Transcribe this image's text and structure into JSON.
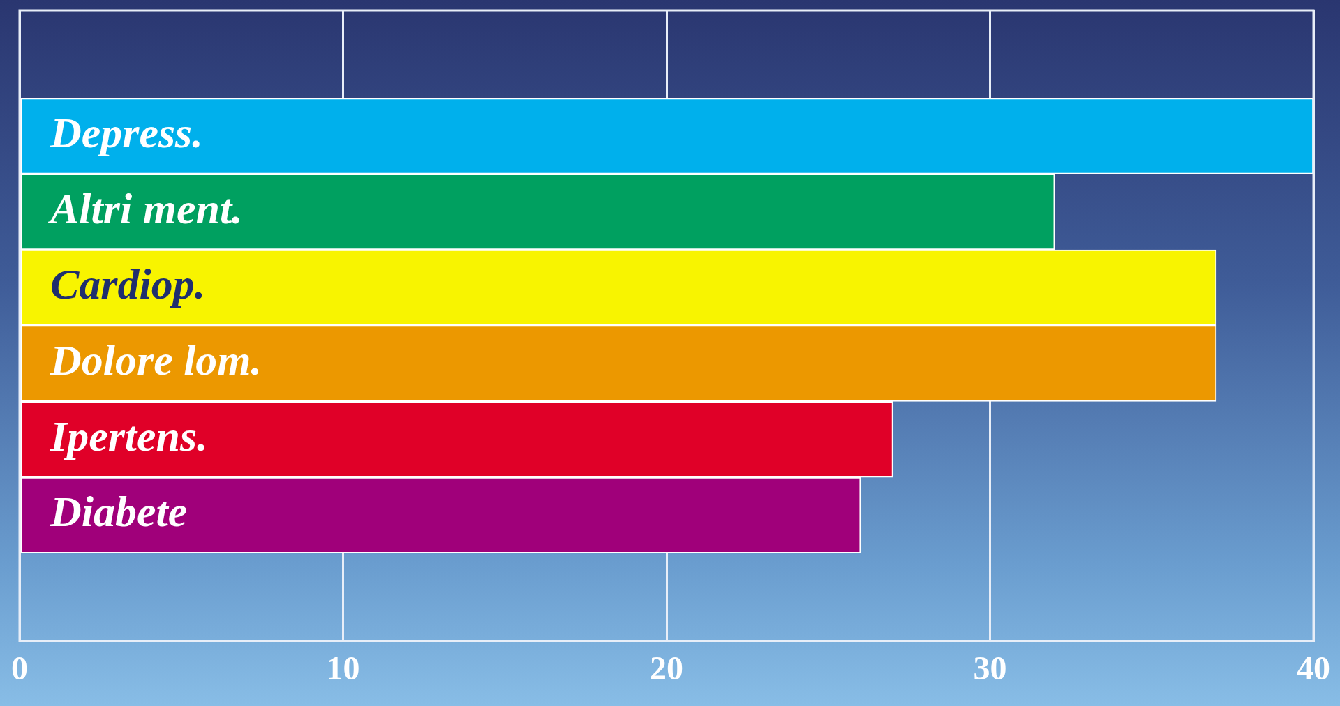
{
  "chart_data": {
    "type": "bar",
    "orientation": "horizontal",
    "categories": [
      "Depress.",
      "Altri ment.",
      "Cardiop.",
      "Dolore lom.",
      "Ipertens.",
      "Diabete"
    ],
    "values": [
      40,
      32,
      37,
      37,
      27,
      26
    ],
    "colors": [
      "#00b0ec",
      "#00a060",
      "#f8f400",
      "#ec9800",
      "#e00028",
      "#a0007a"
    ],
    "xlim": [
      0,
      40
    ],
    "xticks": [
      0,
      10,
      20,
      30,
      40
    ],
    "grid": "x",
    "legend": false
  }
}
